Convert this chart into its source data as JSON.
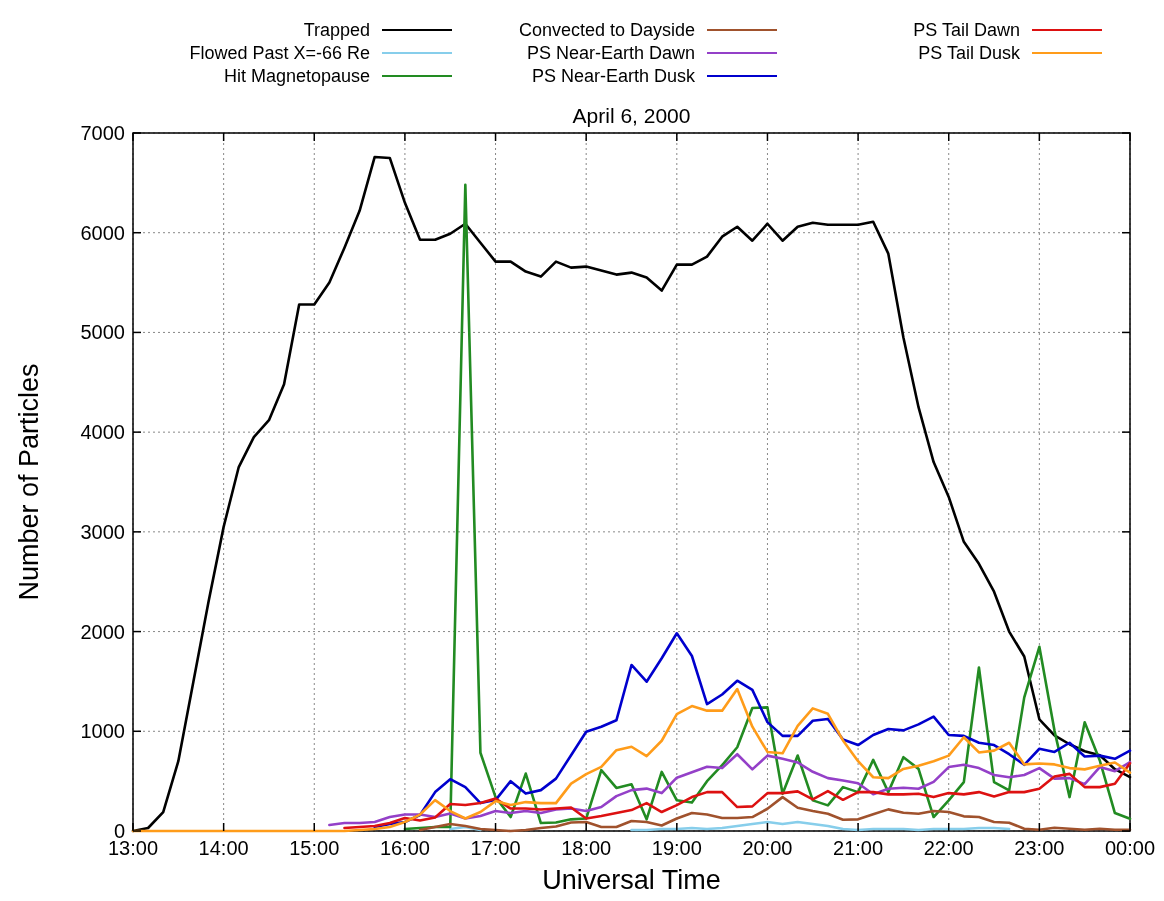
{
  "chart_data": {
    "type": "line",
    "title": "April 6, 2000",
    "xlabel": "Universal Time",
    "ylabel": "Number of Particles",
    "x": [
      13,
      13.1667,
      13.3333,
      13.5,
      13.6667,
      13.8333,
      14,
      14.1667,
      14.3333,
      14.5,
      14.6667,
      14.8333,
      15,
      15.1667,
      15.3333,
      15.5,
      15.6667,
      15.8333,
      16,
      16.1667,
      16.3333,
      16.5,
      16.6667,
      16.8333,
      17,
      17.1667,
      17.3333,
      17.5,
      17.6667,
      17.8333,
      18,
      18.1667,
      18.3333,
      18.5,
      18.6667,
      18.8333,
      19,
      19.1667,
      19.3333,
      19.5,
      19.6667,
      19.8333,
      20,
      20.1667,
      20.3333,
      20.5,
      20.6667,
      20.8333,
      21,
      21.1667,
      21.3333,
      21.5,
      21.6667,
      21.8333,
      22,
      22.1667,
      22.3333,
      22.5,
      22.6667,
      22.8333,
      23,
      23.1667,
      23.3333,
      23.5,
      23.6667,
      23.8333,
      24
    ],
    "series": [
      {
        "name": "Trapped",
        "color": "#000000",
        "values": [
          0,
          30,
          190,
          700,
          1500,
          2300,
          3050,
          3650,
          3950,
          4120,
          4480,
          5280,
          5280,
          5500,
          5850,
          6220,
          6760,
          6750,
          6300,
          5930,
          5930,
          5990,
          6090,
          5900,
          5710,
          5710,
          5610,
          5560,
          5710,
          5650,
          5660,
          5620,
          5580,
          5600,
          5550,
          5420,
          5680,
          5680,
          5760,
          5960,
          6060,
          5920,
          6090,
          5920,
          6060,
          6100,
          6080,
          6080,
          6080,
          6110,
          5790,
          4950,
          4250,
          3700,
          3350,
          2900,
          2680,
          2400,
          2000,
          1750,
          1120,
          960,
          870,
          800,
          760,
          620,
          540
        ]
      },
      {
        "name": "Flowed Past X=-66 Re",
        "color": "#87ceeb",
        "values": [
          null,
          null,
          null,
          null,
          null,
          null,
          null,
          null,
          null,
          null,
          null,
          null,
          null,
          null,
          null,
          null,
          null,
          null,
          null,
          null,
          null,
          20,
          40,
          10,
          null,
          null,
          null,
          null,
          null,
          null,
          null,
          null,
          null,
          10,
          10,
          20,
          20,
          30,
          20,
          30,
          50,
          70,
          90,
          70,
          90,
          70,
          50,
          20,
          10,
          20,
          20,
          20,
          10,
          20,
          20,
          20,
          30,
          30,
          20,
          null,
          null,
          null,
          null,
          null,
          null,
          null,
          null
        ]
      },
      {
        "name": "Hit Magnetopause",
        "color": "#228b22",
        "values": [
          null,
          null,
          null,
          null,
          null,
          null,
          null,
          null,
          null,
          null,
          null,
          null,
          null,
          null,
          null,
          null,
          null,
          null,
          20,
          30,
          40,
          40,
          6480,
          785,
          340,
          140,
          576,
          80,
          85,
          117,
          125,
          610,
          432,
          469,
          117,
          593,
          308,
          285,
          500,
          660,
          840,
          1233,
          1240,
          373,
          757,
          307,
          257,
          440,
          390,
          713,
          390,
          740,
          623,
          140,
          307,
          490,
          1640,
          490,
          407,
          1340,
          1847,
          1007,
          340,
          1090,
          707,
          180,
          123
        ]
      },
      {
        "name": "Convected to Dayside",
        "color": "#a0522d",
        "values": [
          null,
          null,
          null,
          null,
          null,
          null,
          null,
          null,
          null,
          null,
          null,
          null,
          null,
          null,
          null,
          null,
          null,
          null,
          null,
          10,
          40,
          70,
          50,
          20,
          10,
          0,
          10,
          30,
          45,
          85,
          90,
          40,
          40,
          100,
          90,
          55,
          125,
          180,
          165,
          130,
          130,
          140,
          223,
          340,
          233,
          200,
          173,
          113,
          117,
          167,
          217,
          183,
          173,
          200,
          190,
          147,
          140,
          90,
          83,
          23,
          13,
          33,
          23,
          13,
          23,
          13,
          13
        ]
      },
      {
        "name": "PS Near-Earth Dawn",
        "color": "#9440c8",
        "values": [
          null,
          null,
          null,
          null,
          null,
          null,
          null,
          null,
          null,
          null,
          null,
          null,
          null,
          60,
          80,
          80,
          90,
          140,
          165,
          165,
          140,
          175,
          125,
          150,
          200,
          180,
          200,
          180,
          215,
          225,
          200,
          240,
          350,
          410,
          425,
          380,
          535,
          590,
          645,
          631,
          770,
          618,
          756,
          724,
          687,
          594,
          530,
          507,
          479,
          369,
          424,
          433,
          424,
          493,
          641,
          664,
          631,
          562,
          539,
          562,
          631,
          525,
          530,
          470,
          641,
          600,
          690
        ]
      },
      {
        "name": "PS Near-Earth Dusk",
        "color": "#0000cd",
        "values": [
          null,
          null,
          null,
          null,
          null,
          null,
          null,
          null,
          null,
          null,
          null,
          null,
          null,
          null,
          null,
          null,
          40,
          70,
          90,
          160,
          390,
          520,
          440,
          280,
          310,
          500,
          375,
          410,
          525,
          760,
          995,
          1045,
          1110,
          1665,
          1497,
          1732,
          1983,
          1755,
          1273,
          1369,
          1507,
          1415,
          1092,
          954,
          954,
          1106,
          1124,
          917,
          862,
          963,
          1023,
          1009,
          1069,
          1147,
          963,
          954,
          885,
          862,
          770,
          664,
          825,
          793,
          885,
          747,
          756,
          724,
          806
        ]
      },
      {
        "name": "PS Tail Dawn",
        "color": "#dd1111",
        "values": [
          null,
          null,
          null,
          null,
          null,
          null,
          null,
          null,
          null,
          null,
          null,
          null,
          null,
          null,
          30,
          40,
          50,
          80,
          130,
          105,
          135,
          270,
          260,
          280,
          325,
          225,
          225,
          215,
          225,
          235,
          125,
          150,
          180,
          210,
          280,
          190,
          260,
          340,
          390,
          390,
          240,
          247,
          380,
          380,
          397,
          317,
          400,
          313,
          390,
          390,
          367,
          367,
          373,
          340,
          380,
          367,
          390,
          347,
          390,
          390,
          423,
          547,
          573,
          440,
          440,
          473,
          680
        ]
      },
      {
        "name": "PS Tail Dusk",
        "color": "#ff9c1a",
        "values": [
          0,
          0,
          0,
          0,
          0,
          0,
          0,
          0,
          0,
          0,
          0,
          0,
          0,
          0,
          0,
          10,
          20,
          40,
          90,
          165,
          310,
          200,
          125,
          190,
          300,
          260,
          290,
          280,
          280,
          475,
          570,
          643,
          810,
          845,
          750,
          905,
          1173,
          1253,
          1207,
          1207,
          1424,
          1046,
          793,
          779,
          1055,
          1230,
          1175,
          908,
          700,
          539,
          530,
          622,
          654,
          700,
          756,
          940,
          788,
          806,
          885,
          668,
          677,
          668,
          631,
          618,
          654,
          687,
          585
        ]
      }
    ],
    "xlim": [
      13,
      24
    ],
    "xticks": [
      {
        "value": 13,
        "label": "13:00"
      },
      {
        "value": 14,
        "label": "14:00"
      },
      {
        "value": 15,
        "label": "15:00"
      },
      {
        "value": 16,
        "label": "16:00"
      },
      {
        "value": 17,
        "label": "17:00"
      },
      {
        "value": 18,
        "label": "18:00"
      },
      {
        "value": 19,
        "label": "19:00"
      },
      {
        "value": 20,
        "label": "20:00"
      },
      {
        "value": 21,
        "label": "21:00"
      },
      {
        "value": 22,
        "label": "22:00"
      },
      {
        "value": 23,
        "label": "23:00"
      },
      {
        "value": 24,
        "label": "00:00"
      }
    ],
    "ylim": [
      0,
      7000
    ],
    "yticks": [
      0,
      1000,
      2000,
      3000,
      4000,
      5000,
      6000,
      7000
    ],
    "grid": true,
    "legend": "top",
    "line_style": "solid"
  }
}
